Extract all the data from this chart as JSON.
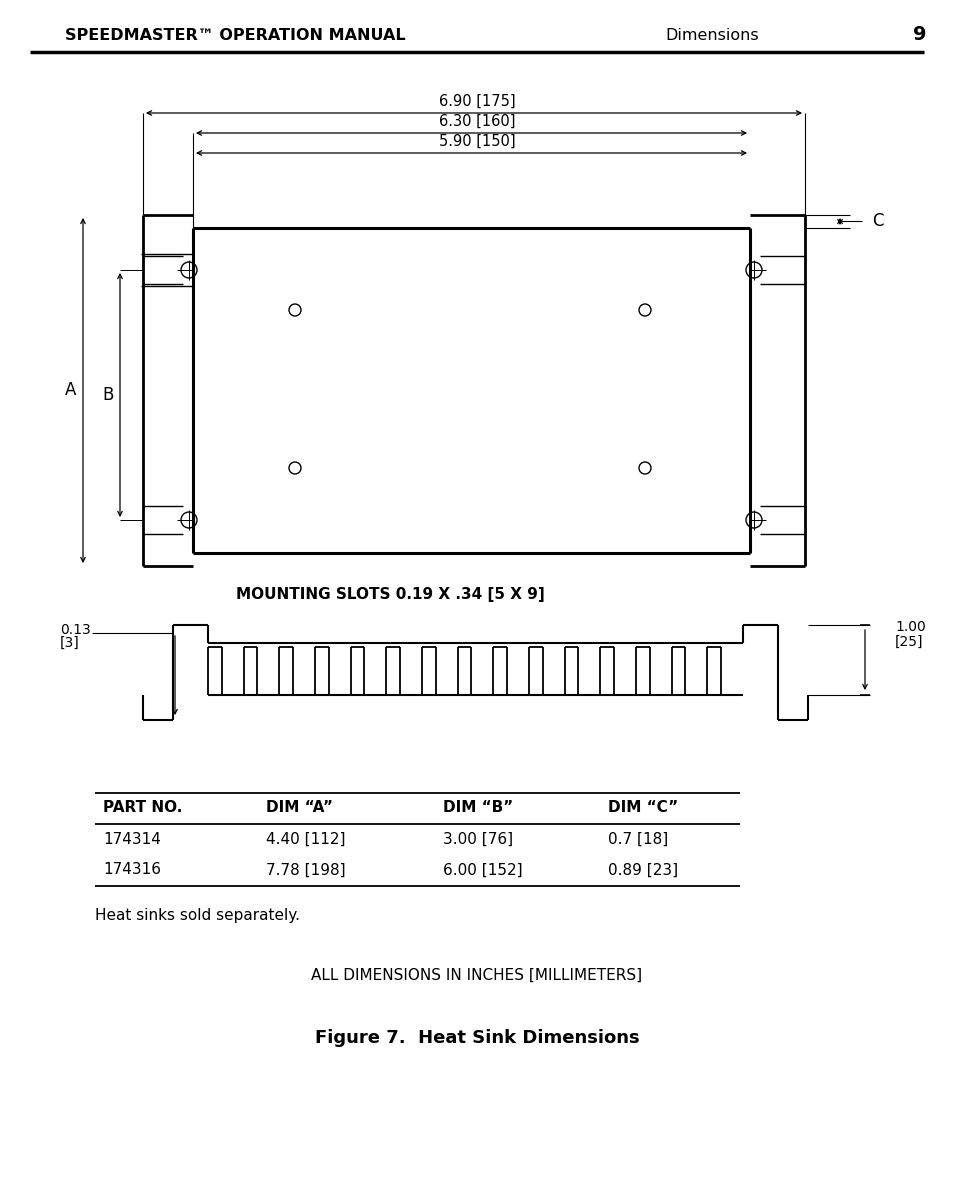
{
  "header_left": "SPEEDMASTER™ OPERATION MANUAL",
  "header_right": "Dimensions",
  "page_num": "9",
  "dim_labels": [
    "6.90 [175]",
    "6.30 [160]",
    "5.90 [150]"
  ],
  "label_A": "A",
  "label_B": "B",
  "label_C": "C",
  "mounting_slots_text": "MOUNTING SLOTS 0.19 X .34 [5 X 9]",
  "table_headers": [
    "PART NO.",
    "DIM “A”",
    "DIM “B”",
    "DIM “C”"
  ],
  "table_row1": [
    "174314",
    "4.40 [112]",
    "3.00 [76]",
    "0.7 [18]"
  ],
  "table_row2": [
    "174316",
    "7.78 [198]",
    "6.00 [152]",
    "0.89 [23]"
  ],
  "table_note": "Heat sinks sold separately.",
  "all_dims_text": "ALL DIMENSIONS IN INCHES [MILLIMETERS]",
  "figure_caption": "Figure 7.  Heat Sink Dimensions",
  "bg_color": "#ffffff",
  "line_color": "#000000"
}
